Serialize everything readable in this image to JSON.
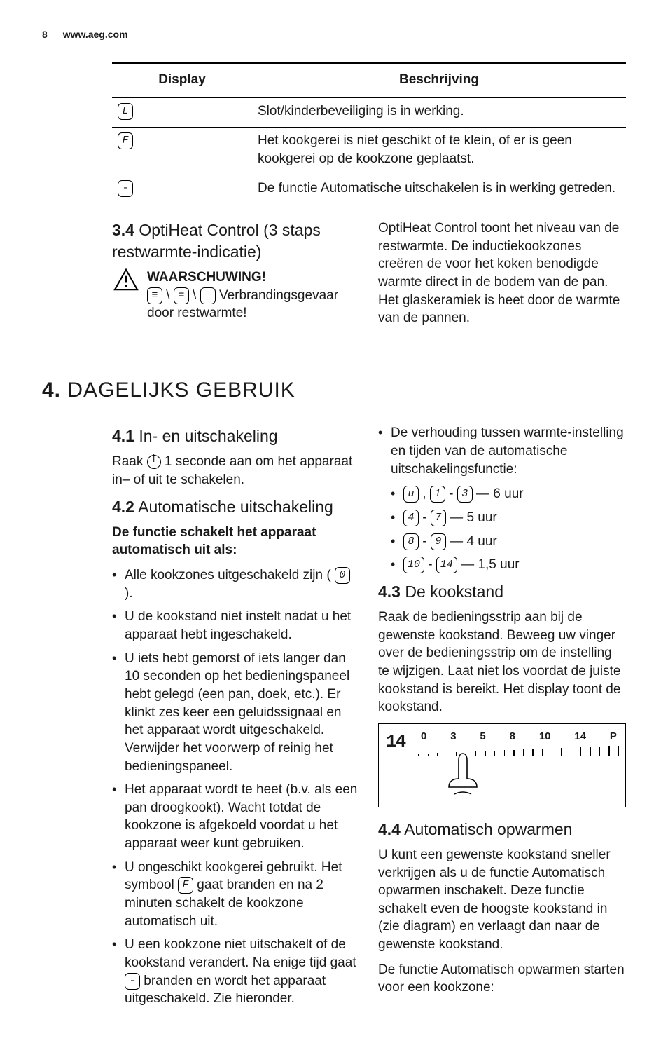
{
  "header": {
    "page_number": "8",
    "site": "www.aeg.com"
  },
  "table": {
    "col1": "Display",
    "col2": "Beschrijving",
    "rows": [
      {
        "sym": "L",
        "desc": "Slot/kinderbeveiliging is in werking."
      },
      {
        "sym": "F",
        "desc": "Het kookgerei is niet geschikt of te klein, of er is geen kookgerei op de kookzone geplaatst."
      },
      {
        "sym": "-",
        "desc": "De functie Automatische uitschakelen is in werking getreden."
      }
    ]
  },
  "sec34": {
    "num": "3.4",
    "title": "OptiHeat Control (3 staps restwarmte-indicatie)",
    "warn_title": "WAARSCHUWING!",
    "warn_sym1": "≡",
    "warn_sym2": "=",
    "warn_sym3": " ",
    "warn_text": "Verbrandingsgevaar door restwarmte!",
    "right": "OptiHeat Control toont het niveau van de restwarmte. De inductiekookzones creëren de voor het koken benodigde warmte direct in de bodem van de pan. Het glaskeramiek is heet door de warmte van de pannen."
  },
  "chap4": {
    "num": "4.",
    "title": "DAGELIJKS GEBRUIK"
  },
  "sec41": {
    "num": "4.1",
    "title": "In- en uitschakeling",
    "text": "Raak  1 seconde aan om het apparaat in– of uit te schakelen.",
    "pre": "Raak ",
    "post": " 1 seconde aan om het apparaat in– of uit te schakelen."
  },
  "sec42": {
    "num": "4.2",
    "title": "Automatische uitschakeling",
    "intro": "De functie schakelt het apparaat automatisch uit als:",
    "b1a": "Alle kookzones uitgeschakeld zijn ( ",
    "b1sym": "0",
    "b1b": " ).",
    "b2": "U de kookstand niet instelt nadat u het apparaat hebt ingeschakeld.",
    "b3": "U iets hebt gemorst of iets langer dan 10 seconden op het bedieningspaneel hebt gelegd (een pan, doek, etc.). Er klinkt zes keer een geluidssignaal en het apparaat wordt uitgeschakeld. Verwijder het voorwerp of reinig het bedieningspaneel.",
    "b4": "Het apparaat wordt te heet (b.v. als een pan droogkookt). Wacht totdat de kookzone is afgekoeld voordat u het apparaat weer kunt gebruiken.",
    "b5a": "U ongeschikt kookgerei gebruikt. Het symbool ",
    "b5sym": "F",
    "b5b": " gaat branden en na 2 minuten schakelt de kookzone automatisch uit.",
    "b6a": "U een kookzone niet uitschakelt of de kookstand verandert. Na enige tijd gaat ",
    "b6sym": "-",
    "b6b": " branden en wordt het apparaat uitgeschakeld. Zie hieronder."
  },
  "sec42r": {
    "lead": "De verhouding tussen warmte-instelling en tijden van de automatische uitschakelingsfunctie:",
    "l1a": "u",
    "l1b": "1",
    "l1c": "3",
    "l1t": " — 6 uur",
    "l2a": "4",
    "l2b": "7",
    "l2t": " — 5 uur",
    "l3a": "8",
    "l3b": "9",
    "l3t": " — 4 uur",
    "l4a": "10",
    "l4b": "14",
    "l4t": " — 1,5 uur"
  },
  "sec43": {
    "num": "4.3",
    "title": "De kookstand",
    "text": "Raak de bedieningsstrip aan bij de gewenste kookstand. Beweeg uw vinger over de bedieningsstrip om de instelling te wijzigen. Laat niet los voordat de juiste kookstand is bereikt. Het display toont de kookstand.",
    "strip": {
      "seg": "14",
      "nums": [
        "0",
        "3",
        "5",
        "8",
        "10",
        "14",
        "P"
      ]
    }
  },
  "sec44": {
    "num": "4.4",
    "title": "Automatisch opwarmen",
    "p1": "U kunt een gewenste kookstand sneller verkrijgen als u de functie Automatisch opwarmen inschakelt. Deze functie schakelt even de hoogste kookstand in (zie diagram) en verlaagt dan naar de gewenste kookstand.",
    "p2": "De functie Automatisch opwarmen starten voor een kookzone:"
  }
}
